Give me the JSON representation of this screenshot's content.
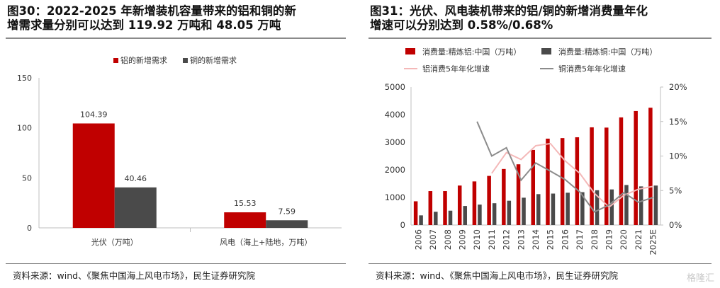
{
  "left": {
    "title_lines": [
      "图30：2022-2025 年新增装机容量带来的铝和铜的新",
      "增需求量分别可以达到 119.92 万吨和 48.05 万吨"
    ],
    "source": "资料来源：wind、《聚焦中国海上风电市场》，民生证券研究院"
  },
  "right": {
    "title_lines": [
      "图31：光伏、风电装机带来的铝/铜的新增消费量年化",
      "增速可以分别达到 0.58%/0.68%"
    ],
    "source": "资料来源：wind、《聚焦中国海上风电市场》，民生证券研究院"
  },
  "watermark": "格隆汇",
  "colors": {
    "aluminum": "#C00000",
    "copper": "#4A4A4A",
    "al_line": "#F4B8B8",
    "cu_line": "#8C8C8C",
    "axis": "#BFBFBF"
  },
  "chart_data": [
    {
      "type": "bar",
      "categories": [
        "光伏（万吨）",
        "风电（海上+陆地，万吨）"
      ],
      "series": [
        {
          "name": "铝的新增需求",
          "values": [
            104.39,
            15.53
          ],
          "labels": [
            "104.39",
            "15.53"
          ]
        },
        {
          "name": "铜的新增需求",
          "values": [
            40.46,
            7.59
          ],
          "labels": [
            "40.46",
            "7.59"
          ]
        }
      ],
      "ylim": [
        0,
        150
      ],
      "yticks": [
        "0",
        "50",
        "100",
        "150"
      ],
      "legend_position": "top-center"
    },
    {
      "type": "bar+line",
      "categories": [
        "2006",
        "2007",
        "2008",
        "2009",
        "2010",
        "2011",
        "2012",
        "2013",
        "2014",
        "2015",
        "2016",
        "2017",
        "2018",
        "2019",
        "2020",
        "2021",
        "2025E"
      ],
      "bar_series": [
        {
          "name": "消费量:精炼铝:中国（万吨）",
          "values": [
            860,
            1230,
            1230,
            1430,
            1580,
            1780,
            2030,
            2200,
            2720,
            3130,
            3150,
            3180,
            3540,
            3530,
            3900,
            4130,
            4250
          ]
        },
        {
          "name": "消费量:精炼铜:中国（万吨）",
          "values": [
            350,
            480,
            520,
            690,
            740,
            790,
            880,
            990,
            1120,
            1140,
            1170,
            1190,
            1260,
            1290,
            1450,
            1400,
            1430
          ]
        }
      ],
      "line_series": [
        {
          "name": "铝消费5年年化增速",
          "values": [
            null,
            null,
            null,
            null,
            null,
            7.5,
            10.5,
            9.5,
            11.5,
            11.8,
            9.3,
            7.5,
            4.6,
            2.6,
            4.3,
            5.2,
            5.6
          ]
        },
        {
          "name": "铜消费5年年化增速",
          "values": [
            null,
            null,
            null,
            null,
            15.0,
            10.0,
            11.2,
            6.5,
            9.0,
            7.8,
            6.6,
            4.8,
            1.9,
            2.9,
            4.7,
            3.3,
            4.0
          ]
        }
      ],
      "ylim_left": [
        0,
        5000
      ],
      "yticks_left": [
        "0",
        "1000",
        "2000",
        "3000",
        "4000",
        "5000"
      ],
      "ylim_right": [
        0,
        20
      ],
      "yticks_right": [
        "0%",
        "5%",
        "10%",
        "15%",
        "20%"
      ],
      "legend_position": "top"
    }
  ]
}
